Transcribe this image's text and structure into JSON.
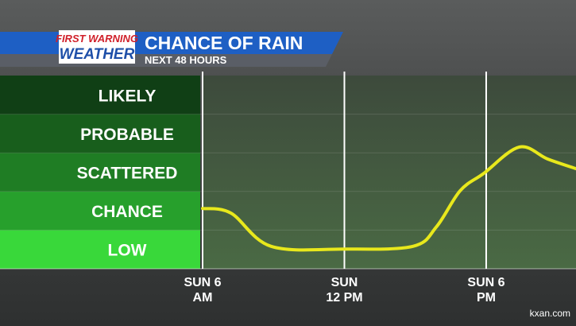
{
  "logo": {
    "line1": "FIRST WARNING",
    "line2": "WEATHER"
  },
  "watermark": "kxan.com",
  "chart_data": {
    "type": "line",
    "title": "CHANCE OF RAIN",
    "subtitle": "NEXT 48 HOURS",
    "xlim": [
      0,
      15.8
    ],
    "xticks": [
      {
        "value": 0,
        "label": "SUN 6 AM"
      },
      {
        "value": 6,
        "label": "SUN 12 PM"
      },
      {
        "value": 12,
        "label": "SUN 6 PM"
      }
    ],
    "ylim": [
      0,
      5
    ],
    "yticks": [
      {
        "value": 0.5,
        "label": "LOW"
      },
      {
        "value": 1.5,
        "label": "CHANCE"
      },
      {
        "value": 2.5,
        "label": "SCATTERED"
      },
      {
        "value": 3.5,
        "label": "PROBABLE"
      },
      {
        "value": 4.5,
        "label": "LIKELY"
      }
    ],
    "band_colors": [
      "#39d83a",
      "#27a02c",
      "#1f7d24",
      "#185e1c",
      "#103f15"
    ],
    "x": [
      0,
      1.2,
      2.9,
      6,
      8.9,
      9.9,
      10.9,
      11.9,
      13.4,
      14.6,
      15.8
    ],
    "series": [
      {
        "color": "#e8e81c",
        "values": [
          1.56,
          1.44,
          0.58,
          0.51,
          0.58,
          1.09,
          2.02,
          2.47,
          3.15,
          2.84,
          2.59
        ]
      }
    ]
  }
}
